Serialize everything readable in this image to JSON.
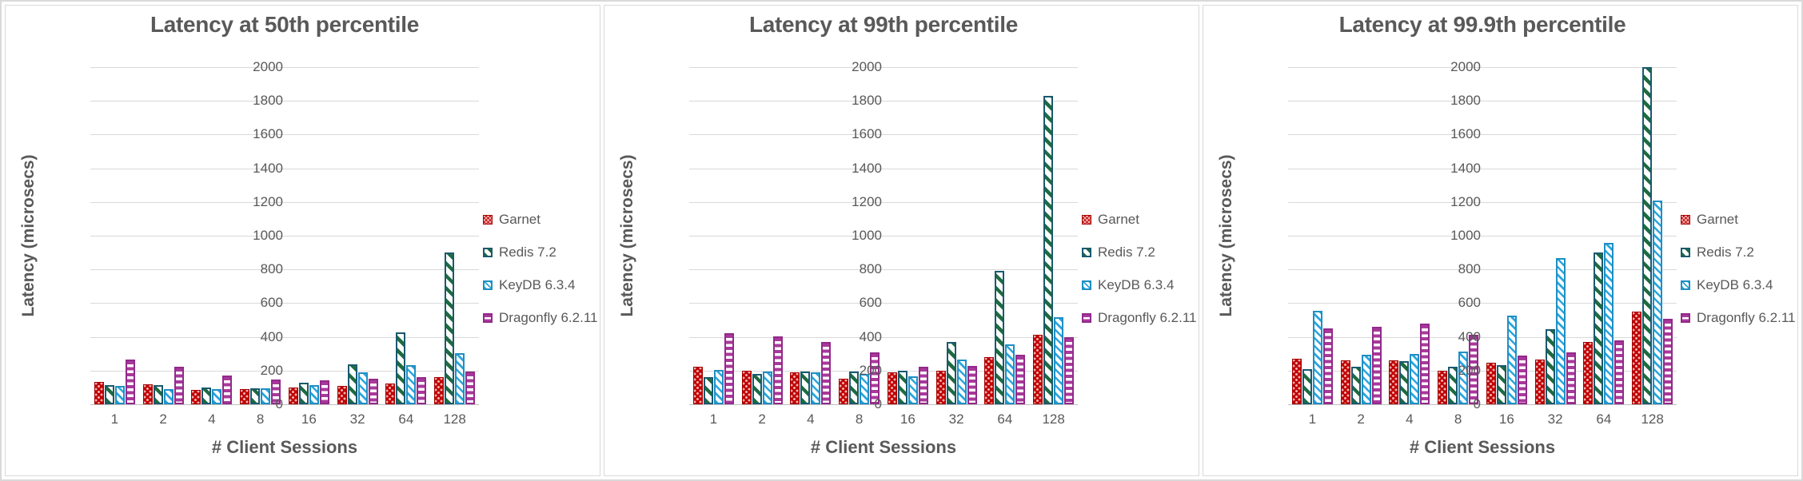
{
  "palette": {
    "garnet": "#C00000",
    "garnet_dot": "#F0AFAF",
    "garnet_border": "#A30000",
    "redis_border": "#19596E",
    "redis_stripe": "#1E6B40",
    "keydb": "#2CA5DC",
    "keydb_border": "#1F8FC4",
    "dragonfly": "#A8399B",
    "dragonfly_border": "#93298A",
    "grid": "#D9D9D9",
    "baseline": "#BFBFBF",
    "text": "#595959"
  },
  "axes": {
    "y_ticks": [
      2000,
      1800,
      1600,
      1400,
      1200,
      1000,
      800,
      600,
      400,
      200,
      0
    ]
  },
  "legend": {
    "items": [
      {
        "key": "garnet",
        "label": "Garnet"
      },
      {
        "key": "redis",
        "label": "Redis 7.2"
      },
      {
        "key": "keydb",
        "label": "KeyDB 6.3.4"
      },
      {
        "key": "dragonfly",
        "label": "Dragonfly 6.2.11"
      }
    ]
  },
  "chart_data": [
    {
      "type": "bar",
      "title": "Latency at 50th percentile",
      "xlabel": "# Client Sessions",
      "ylabel": "Latency (microsecs)",
      "ylim": [
        0,
        2000
      ],
      "ytick_step": 200,
      "grid": true,
      "legend_position": "right",
      "categories": [
        "1",
        "2",
        "4",
        "8",
        "16",
        "32",
        "64",
        "128"
      ],
      "series": [
        {
          "name": "Garnet",
          "key": "garnet",
          "values": [
            135,
            118,
            85,
            88,
            100,
            110,
            124,
            160
          ]
        },
        {
          "name": "Redis 7.2",
          "key": "redis",
          "values": [
            115,
            115,
            98,
            95,
            128,
            235,
            428,
            900
          ]
        },
        {
          "name": "KeyDB 6.3.4",
          "key": "keydb",
          "values": [
            110,
            88,
            88,
            93,
            113,
            190,
            232,
            303
          ]
        },
        {
          "name": "Dragonfly 6.2.11",
          "key": "dragonfly",
          "values": [
            265,
            225,
            170,
            148,
            140,
            152,
            163,
            192
          ]
        }
      ]
    },
    {
      "type": "bar",
      "title": "Latency at 99th percentile",
      "xlabel": "# Client Sessions",
      "ylabel": "Latency (microsecs)",
      "ylim": [
        0,
        2000
      ],
      "ytick_step": 200,
      "grid": true,
      "legend_position": "right",
      "categories": [
        "1",
        "2",
        "4",
        "8",
        "16",
        "32",
        "64",
        "128"
      ],
      "series": [
        {
          "name": "Garnet",
          "key": "garnet",
          "values": [
            225,
            200,
            188,
            150,
            190,
            200,
            278,
            410
          ]
        },
        {
          "name": "Redis 7.2",
          "key": "redis",
          "values": [
            160,
            180,
            195,
            192,
            197,
            370,
            790,
            1830
          ]
        },
        {
          "name": "KeyDB 6.3.4",
          "key": "keydb",
          "values": [
            205,
            195,
            190,
            180,
            165,
            265,
            355,
            515
          ]
        },
        {
          "name": "Dragonfly 6.2.11",
          "key": "dragonfly",
          "values": [
            420,
            405,
            370,
            310,
            222,
            228,
            292,
            397
          ]
        }
      ]
    },
    {
      "type": "bar",
      "title": "Latency at 99.9th percentile",
      "xlabel": "# Client Sessions",
      "ylabel": "Latency (microsecs)",
      "ylim": [
        0,
        2000
      ],
      "ytick_step": 200,
      "grid": true,
      "legend_position": "right",
      "categories": [
        "1",
        "2",
        "4",
        "8",
        "16",
        "32",
        "64",
        "128"
      ],
      "series": [
        {
          "name": "Garnet",
          "key": "garnet",
          "values": [
            270,
            260,
            260,
            198,
            247,
            264,
            370,
            550
          ]
        },
        {
          "name": "Redis 7.2",
          "key": "redis",
          "values": [
            207,
            225,
            258,
            224,
            234,
            447,
            900,
            2000
          ]
        },
        {
          "name": "KeyDB 6.3.4",
          "key": "keydb",
          "values": [
            555,
            293,
            297,
            312,
            525,
            865,
            955,
            1210
          ]
        },
        {
          "name": "Dragonfly 6.2.11",
          "key": "dragonfly",
          "values": [
            452,
            460,
            477,
            413,
            289,
            310,
            378,
            508
          ]
        }
      ]
    }
  ]
}
